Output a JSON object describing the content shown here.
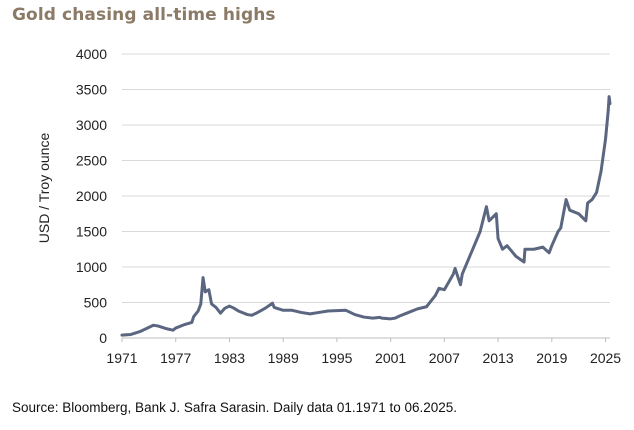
{
  "title": "Gold chasing all-time highs",
  "source": "Source: Bloomberg, Bank J. Safra Sarasin. Daily data 01.1971 to 06.2025.",
  "chart_data": {
    "type": "line",
    "title": "Gold chasing all-time highs",
    "xlabel": "",
    "ylabel": "USD / Troy ounce",
    "xlim": [
      1971,
      2025.5
    ],
    "ylim": [
      0,
      4000
    ],
    "x_ticks": [
      "1971",
      "1977",
      "1983",
      "1989",
      "1995",
      "2001",
      "2007",
      "2013",
      "2019",
      "2025"
    ],
    "y_ticks": [
      "0",
      "500",
      "1000",
      "1500",
      "2000",
      "2500",
      "3000",
      "3500",
      "4000"
    ],
    "grid": "horizontal",
    "line_color": "#5b6680",
    "series": [
      {
        "x": [
          1971,
          1972,
          1973,
          1973.5,
          1974,
          1974.5,
          1975,
          1976,
          1976.7,
          1977,
          1978,
          1978.8,
          1979,
          1979.5,
          1979.8,
          1980.05,
          1980.3,
          1980.7,
          1981,
          1981.5,
          1982,
          1982.5,
          1983,
          1983.5,
          1984,
          1985,
          1985.5,
          1986,
          1987,
          1987.8,
          1988,
          1989,
          1990,
          1991,
          1992,
          1993,
          1994,
          1995,
          1996,
          1997,
          1998,
          1999,
          1999.8,
          2000,
          2001,
          2001.5,
          2002,
          2003,
          2004,
          2005,
          2006,
          2006.4,
          2007,
          2008,
          2008.2,
          2008.8,
          2009,
          2010,
          2011,
          2011.7,
          2012,
          2012.8,
          2013,
          2013.5,
          2014,
          2015,
          2015.9,
          2016,
          2017,
          2018,
          2018.7,
          2019,
          2019.7,
          2020,
          2020.6,
          2021,
          2022,
          2022.8,
          2023,
          2023.5,
          2024,
          2024.5,
          2025,
          2025.3,
          2025.4,
          2025.5
        ],
        "values": [
          40,
          50,
          90,
          120,
          150,
          180,
          170,
          130,
          110,
          140,
          190,
          220,
          300,
          380,
          480,
          850,
          650,
          680,
          480,
          430,
          350,
          420,
          450,
          420,
          380,
          330,
          320,
          350,
          420,
          490,
          430,
          390,
          390,
          360,
          340,
          360,
          380,
          385,
          390,
          330,
          295,
          280,
          290,
          280,
          270,
          280,
          310,
          360,
          410,
          440,
          600,
          700,
          680,
          900,
          980,
          750,
          900,
          1200,
          1500,
          1850,
          1650,
          1750,
          1400,
          1250,
          1300,
          1150,
          1070,
          1250,
          1250,
          1280,
          1200,
          1300,
          1500,
          1550,
          1950,
          1800,
          1750,
          1650,
          1900,
          1950,
          2050,
          2350,
          2800,
          3200,
          3400,
          3300
        ]
      }
    ]
  }
}
